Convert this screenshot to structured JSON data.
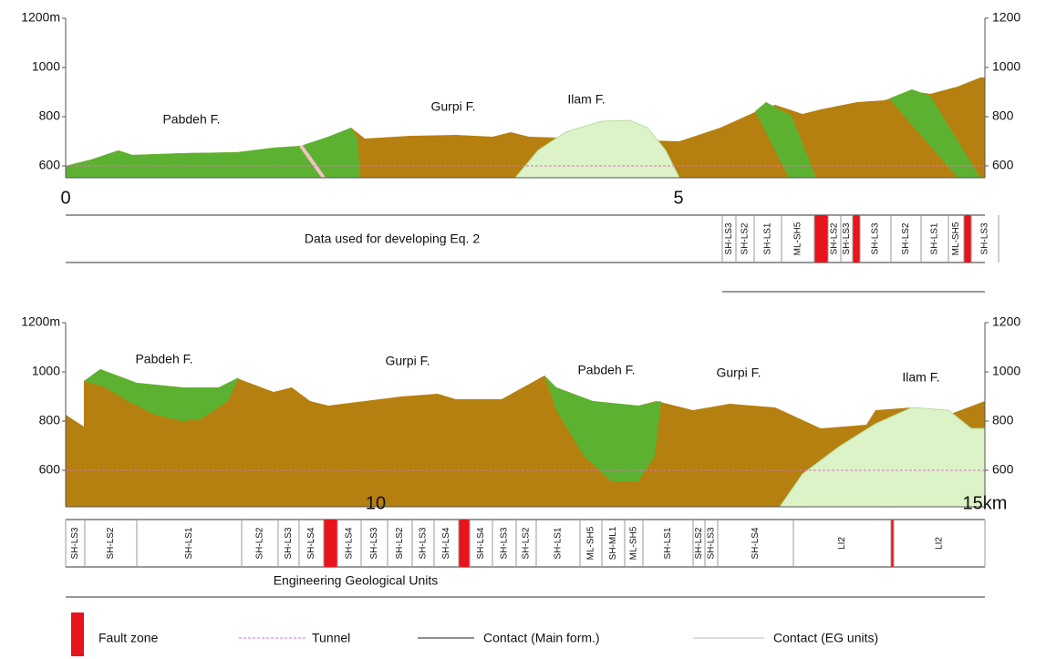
{
  "panels": [
    {
      "y_ticks": [
        "1200m",
        "1000",
        "800",
        "600"
      ],
      "y_ticks_right": [
        "1200",
        "1000",
        "800",
        "600"
      ],
      "x_ticks": [
        "0",
        "5"
      ],
      "formations": [
        "Pabdeh F.",
        "Gurpi F.",
        "Ilam F."
      ],
      "strip_title": "Data used for developing Eq. 2",
      "units": [
        "SH-LS3",
        "SH-LS2",
        "SH-LS1",
        "ML-SH5",
        "SH-LS2",
        "SH-LS3",
        "SH-LS3",
        "SH-LS2",
        "SH-LS1",
        "ML-SH5",
        "SH-LS3"
      ]
    },
    {
      "y_ticks": [
        "1200m",
        "1000",
        "800",
        "600"
      ],
      "y_ticks_right": [
        "1200",
        "1000",
        "800",
        "600"
      ],
      "x_ticks": [
        "10",
        "15km"
      ],
      "formations": [
        "Pabdeh F.",
        "Gurpi F.",
        "Pabdeh F.",
        "Gurpi F.",
        "Ilam F."
      ],
      "strip_title": "Engineering Geological Units",
      "units": [
        "SH-LS3",
        "SH-LS2",
        "SH-LS1",
        "SH-LS2",
        "SH-LS3",
        "SH-LS4",
        "SH-LS4",
        "SH-LS3",
        "SH-LS2",
        "SH-LS3",
        "SH-LS4",
        "SH-LS4",
        "SH-LS3",
        "SH-LS2",
        "SH-LS1",
        "ML-SH5",
        "SH-ML1",
        "ML-SH5",
        "SH-LS1",
        "SH-LS2",
        "SH-LS3",
        "SH-LS4",
        "LI2",
        "LI2"
      ]
    }
  ],
  "legend": [
    "Fault zone",
    "Tunnel",
    "Contact (Main form.)",
    "Contact (EG units)"
  ]
}
